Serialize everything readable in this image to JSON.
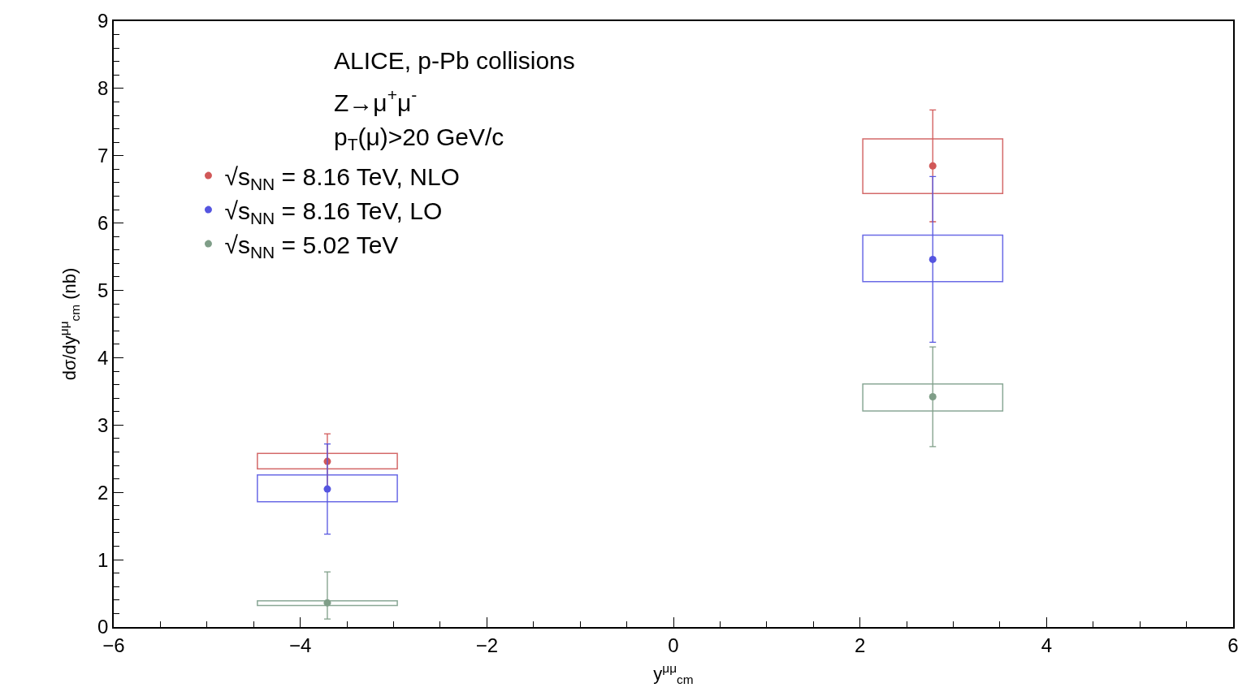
{
  "chart_data": {
    "type": "scatter",
    "xlabel": "y$^{μμ}$$_{cm}$",
    "ylabel": "dσ/dy$^{μμ}$$_{cm}$ (nb)",
    "annotations": [
      "ALICE, p-Pb collisions",
      "Z→μ$^{+}$μ$^{-}$",
      "p$_{T}$(μ)>20 GeV/c"
    ],
    "xlim": [
      -6,
      6
    ],
    "xticks": [
      -6,
      -4,
      -2,
      0,
      2,
      4,
      6
    ],
    "ylim": [
      0,
      9
    ],
    "yticks": [
      0,
      1,
      2,
      3,
      4,
      5,
      6,
      7,
      8,
      9
    ],
    "legend": "top left",
    "marker": "circle",
    "x": [
      -3.71,
      2.78
    ],
    "series": [
      {
        "type": "bar",
        "color": "#d46a6a",
        "base": [
          2.35,
          6.44
        ],
        "values": [
          0.23,
          0.81
        ]
      },
      {
        "type": "bar",
        "color": "#6a6ae6",
        "base": [
          1.86,
          5.13
        ],
        "values": [
          0.4,
          0.69
        ]
      },
      {
        "type": "bar",
        "color": "#8aa896",
        "base": [
          0.32,
          3.21
        ],
        "values": [
          0.07,
          0.4
        ]
      },
      {
        "name": "√s$_{NN}$ = 8.16 TeV, NLO",
        "color": "#d15858",
        "values": [
          2.46,
          6.85
        ],
        "errors": [
          0.41,
          0.83
        ]
      },
      {
        "name": "√s$_{NN}$ = 8.16 TeV, LO",
        "color": "#5555e0",
        "values": [
          2.05,
          5.46
        ],
        "errors": [
          0.67,
          1.23
        ]
      },
      {
        "name": "√s$_{NN}$ = 5.02 TeV",
        "color": "#7f9e88",
        "values": [
          0.36,
          3.42
        ],
        "errors": [
          [
            0.12,
            0.82
          ],
          0.74
        ]
      }
    ]
  }
}
